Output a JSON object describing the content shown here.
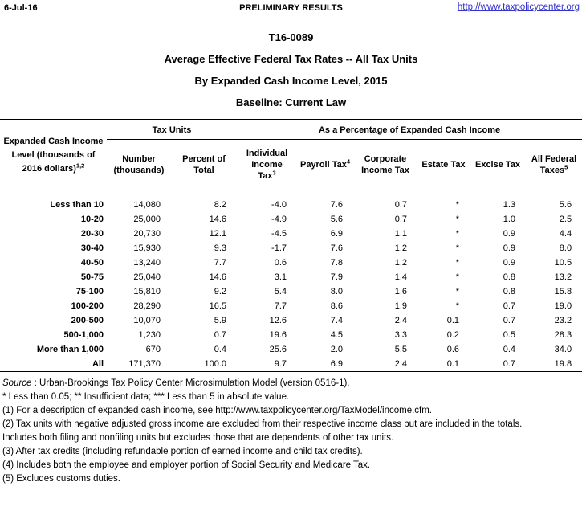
{
  "page_header": {
    "date": "6-Jul-16",
    "center": "PRELIMINARY RESULTS",
    "link": "http://www.taxpolicycenter.org",
    "link_color": "#3333cc"
  },
  "titles": {
    "table_number": "T16-0089",
    "line1": "Average Effective Federal Tax Rates -- All Tax Units",
    "line2": "By Expanded Cash Income Level, 2015",
    "line3": "Baseline: Current Law"
  },
  "table": {
    "row_header": {
      "line1": "Expanded Cash Income",
      "line2": "Level (thousands of",
      "line3": "2016 dollars)",
      "sup": "1,2"
    },
    "groups": [
      {
        "label": "Tax Units"
      },
      {
        "label": "As a Percentage of Expanded Cash Income"
      }
    ],
    "columns": [
      {
        "lines": [
          "Number",
          "(thousands)"
        ],
        "sup": ""
      },
      {
        "lines": [
          "Percent of",
          "Total"
        ],
        "sup": ""
      },
      {
        "lines": [
          "Individual",
          "Income",
          "Tax"
        ],
        "sup": "3"
      },
      {
        "lines": [
          "Payroll Tax"
        ],
        "sup": "4"
      },
      {
        "lines": [
          "Corporate",
          "Income Tax"
        ],
        "sup": ""
      },
      {
        "lines": [
          "Estate Tax"
        ],
        "sup": ""
      },
      {
        "lines": [
          "Excise Tax"
        ],
        "sup": ""
      },
      {
        "lines": [
          "All Federal",
          "Taxes"
        ],
        "sup": "5"
      }
    ],
    "rows": [
      {
        "label": "Less than 10",
        "values": [
          "14,080",
          "8.2",
          "-4.0",
          "7.6",
          "0.7",
          "*",
          "1.3",
          "5.6"
        ]
      },
      {
        "label": "10-20",
        "values": [
          "25,000",
          "14.6",
          "-4.9",
          "5.6",
          "0.7",
          "*",
          "1.0",
          "2.5"
        ]
      },
      {
        "label": "20-30",
        "values": [
          "20,730",
          "12.1",
          "-4.5",
          "6.9",
          "1.1",
          "*",
          "0.9",
          "4.4"
        ]
      },
      {
        "label": "30-40",
        "values": [
          "15,930",
          "9.3",
          "-1.7",
          "7.6",
          "1.2",
          "*",
          "0.9",
          "8.0"
        ]
      },
      {
        "label": "40-50",
        "values": [
          "13,240",
          "7.7",
          "0.6",
          "7.8",
          "1.2",
          "*",
          "0.9",
          "10.5"
        ]
      },
      {
        "label": "50-75",
        "values": [
          "25,040",
          "14.6",
          "3.1",
          "7.9",
          "1.4",
          "*",
          "0.8",
          "13.2"
        ]
      },
      {
        "label": "75-100",
        "values": [
          "15,810",
          "9.2",
          "5.4",
          "8.0",
          "1.6",
          "*",
          "0.8",
          "15.8"
        ]
      },
      {
        "label": "100-200",
        "values": [
          "28,290",
          "16.5",
          "7.7",
          "8.6",
          "1.9",
          "*",
          "0.7",
          "19.0"
        ]
      },
      {
        "label": "200-500",
        "values": [
          "10,070",
          "5.9",
          "12.6",
          "7.4",
          "2.4",
          "0.1",
          "0.7",
          "23.2"
        ]
      },
      {
        "label": "500-1,000",
        "values": [
          "1,230",
          "0.7",
          "19.6",
          "4.5",
          "3.3",
          "0.2",
          "0.5",
          "28.3"
        ]
      },
      {
        "label": "More than 1,000",
        "values": [
          "670",
          "0.4",
          "25.6",
          "2.0",
          "5.5",
          "0.6",
          "0.4",
          "34.0"
        ]
      },
      {
        "label": "All",
        "values": [
          "171,370",
          "100.0",
          "9.7",
          "6.9",
          "2.4",
          "0.1",
          "0.7",
          "19.8"
        ]
      }
    ]
  },
  "notes": {
    "source_label": "Source",
    "source_rest": " : Urban-Brookings Tax Policy Center Microsimulation Model (version 0516-1).",
    "lines": [
      "* Less than 0.05; ** Insufficient data; *** Less than 5 in absolute value.",
      "(1) For a description of expanded cash income, see http://www.taxpolicycenter.org/TaxModel/income.cfm.",
      "(2) Tax units with negative adjusted gross income are excluded from their respective income class but are included in the totals.",
      "Includes both filing and nonfiling units but excludes those that are dependents of other tax units.",
      "(3) After tax credits (including refundable portion of earned income and child tax credits).",
      "(4) Includes both the employee and employer portion of Social Security and Medicare Tax.",
      "(5) Excludes customs duties."
    ]
  }
}
